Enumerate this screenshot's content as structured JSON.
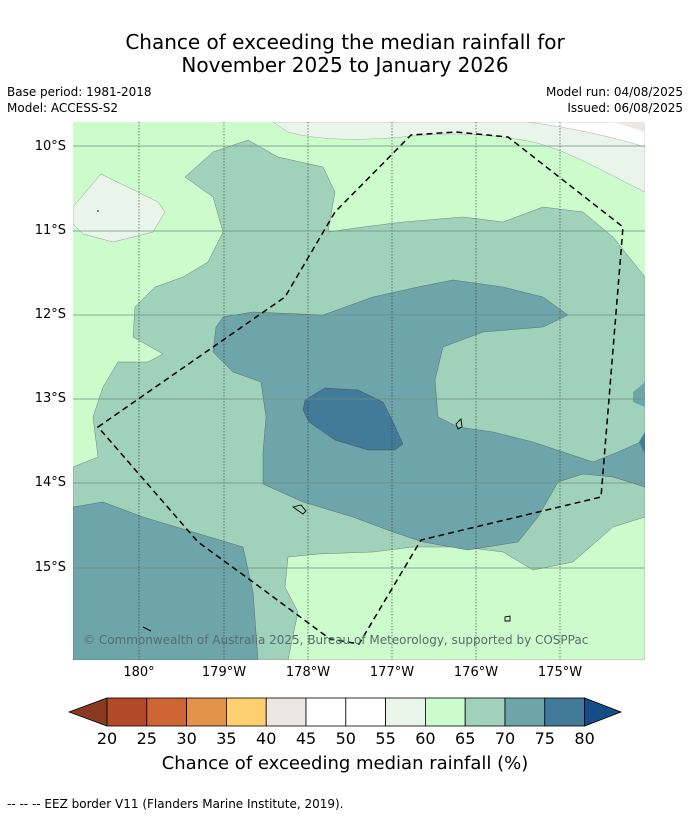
{
  "title_line1": "Chance of exceeding the median rainfall for",
  "title_line2": "November 2025 to January 2026",
  "meta": {
    "base_period": "Base period: 1981-2018",
    "model": "Model: ACCESS-S2",
    "model_run": "Model run: 04/08/2025",
    "issued": "Issued: 06/08/2025"
  },
  "map": {
    "copyright": "© Commonwealth of Australia 2025, Bureau of Meteorology, supported by COSPPac",
    "lat_labels": [
      "10°S",
      "11°S",
      "12°S",
      "13°S",
      "14°S",
      "15°S"
    ],
    "lon_labels": [
      "180°",
      "179°W",
      "178°W",
      "177°W",
      "176°W",
      "175°W"
    ]
  },
  "colorbar": {
    "ticks": [
      "20",
      "25",
      "30",
      "35",
      "40",
      "45",
      "50",
      "55",
      "60",
      "65",
      "70",
      "75",
      "80"
    ],
    "colors": [
      "#8b3a22",
      "#b4492a",
      "#cd6535",
      "#e39449",
      "#fdcf6e",
      "#ece7e4",
      "#ffffff",
      "#ffffff",
      "#e9f4ea",
      "#ccfccc",
      "#9fd1bb",
      "#6ea5aa",
      "#427a99",
      "#134c86"
    ],
    "label": "Chance of exceeding median rainfall (%)"
  },
  "footnote": "--  --  -- EEZ border V11 (Flanders Marine Institute, 2019)."
}
